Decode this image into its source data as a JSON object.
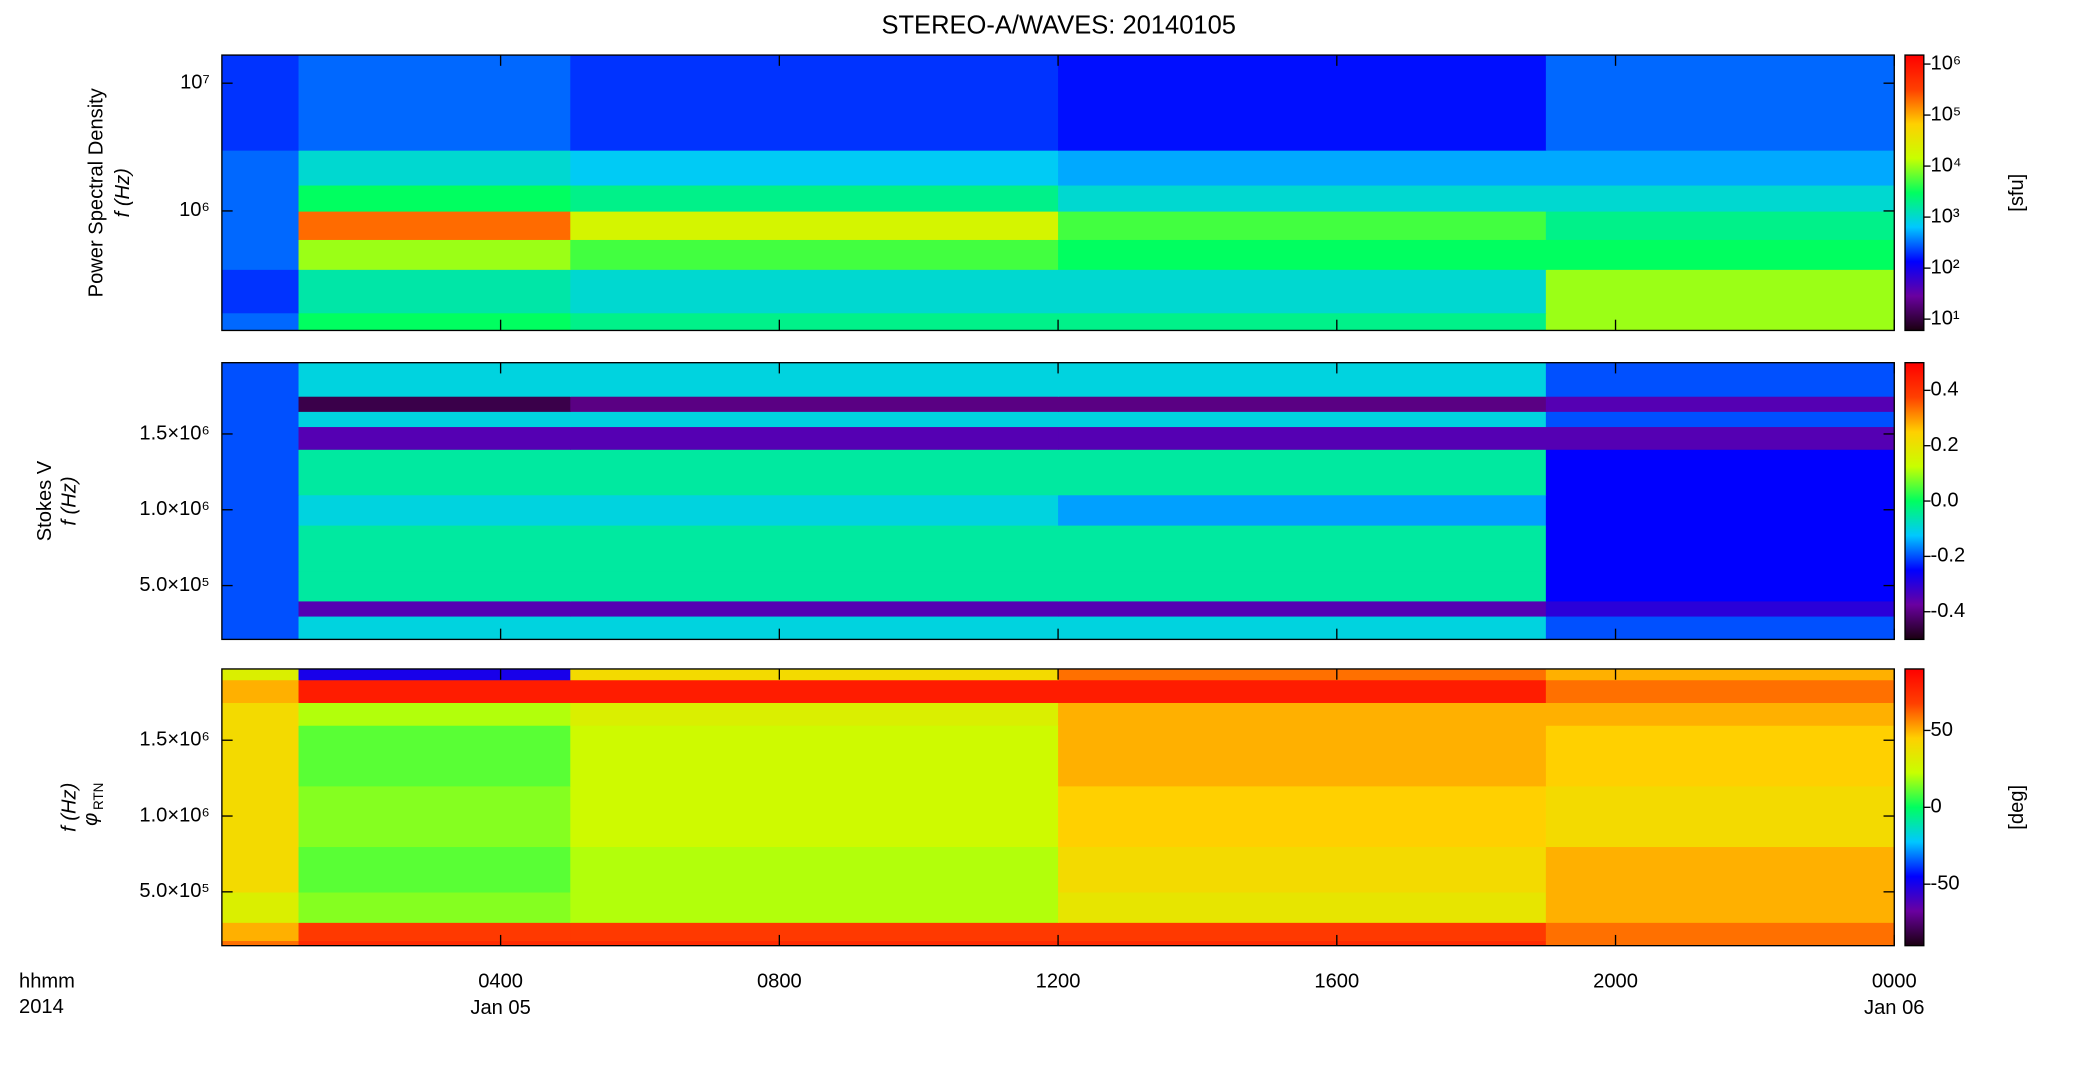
{
  "chart_data": [
    {
      "type": "heatmap",
      "title": "STEREO-A/WAVES: 20140105",
      "ylabel": "Power Spectral Density",
      "ylabel2": "f (Hz)",
      "xlim": [
        0,
        24
      ],
      "ylim": [
        116000,
        16600000
      ],
      "ylog": true,
      "yticks": [
        {
          "value": 1000000,
          "label": "10⁶"
        },
        {
          "value": 10000000,
          "label": "10⁷"
        }
      ],
      "x_edges": [
        0,
        1.1,
        5,
        12,
        19,
        24
      ],
      "y_edges": [
        116000,
        160000,
        350000,
        600000,
        1000000,
        1600000,
        3000000,
        16600000
      ],
      "z": [
        [
          300,
          3000,
          2000,
          2000,
          10000
        ],
        [
          200,
          1500,
          1000,
          1000,
          10000
        ],
        [
          300,
          10000,
          5000,
          3000,
          3000
        ],
        [
          300,
          200000,
          20000,
          5000,
          2000
        ],
        [
          300,
          3000,
          2000,
          1000,
          1000
        ],
        [
          300,
          1000,
          700,
          500,
          500
        ],
        [
          200,
          300,
          200,
          150,
          300
        ]
      ],
      "zlim": [
        6,
        1500000
      ],
      "zlog": true,
      "zlabel": "[sfu]",
      "zticks": [
        {
          "value": 10,
          "label": "10¹"
        },
        {
          "value": 100,
          "label": "10²"
        },
        {
          "value": 1000,
          "label": "10³"
        },
        {
          "value": 10000,
          "label": "10⁴"
        },
        {
          "value": 100000,
          "label": "10⁵"
        },
        {
          "value": 1000000,
          "label": "10⁶"
        }
      ],
      "colormap": [
        "#1a0010",
        "#6a00a0",
        "#0000ff",
        "#00c8ff",
        "#00ff60",
        "#c8ff00",
        "#ffd000",
        "#ff4000",
        "#ff0000"
      ]
    },
    {
      "type": "heatmap",
      "ylabel": "Stokes V",
      "ylabel2": "f (Hz)",
      "xlim": [
        0,
        24
      ],
      "ylim": [
        145000,
        1970000
      ],
      "ylog": false,
      "yticks": [
        {
          "value": 500000,
          "label": "5.0×10⁵"
        },
        {
          "value": 1000000,
          "label": "1.0×10⁶"
        },
        {
          "value": 1500000,
          "label": "1.5×10⁶"
        }
      ],
      "x_edges": [
        0,
        1.1,
        5,
        12,
        19,
        24
      ],
      "y_edges": [
        145000,
        300000,
        400000,
        600000,
        900000,
        1100000,
        1400000,
        1550000,
        1650000,
        1750000,
        1970000
      ],
      "z": [
        [
          -0.2,
          -0.1,
          -0.1,
          -0.1,
          -0.2
        ],
        [
          -0.2,
          -0.35,
          -0.35,
          -0.35,
          -0.3
        ],
        [
          -0.2,
          -0.05,
          -0.05,
          -0.05,
          -0.25
        ],
        [
          -0.2,
          -0.05,
          -0.05,
          -0.05,
          -0.25
        ],
        [
          -0.2,
          -0.1,
          -0.1,
          -0.15,
          -0.25
        ],
        [
          -0.2,
          -0.05,
          -0.05,
          -0.05,
          -0.25
        ],
        [
          -0.2,
          -0.35,
          -0.35,
          -0.35,
          -0.35
        ],
        [
          -0.2,
          -0.1,
          -0.1,
          -0.1,
          -0.2
        ],
        [
          -0.2,
          -0.45,
          -0.4,
          -0.4,
          -0.35
        ],
        [
          -0.2,
          -0.1,
          -0.1,
          -0.1,
          -0.2
        ]
      ],
      "zlim": [
        -0.5,
        0.5
      ],
      "zlog": false,
      "zticks": [
        -0.4,
        -0.2,
        {
          "value": 0,
          "label": "0.0"
        },
        0.2,
        0.4
      ],
      "colormap": [
        "#1a0010",
        "#6a00a0",
        "#0000ff",
        "#00c8ff",
        "#00ff60",
        "#c8ff00",
        "#ffd000",
        "#ff4000",
        "#ff0000"
      ]
    },
    {
      "type": "heatmap",
      "ylabel": "φ",
      "ylabel_sub": "RTN",
      "ylabel2": "f (Hz)",
      "xlim": [
        0,
        24
      ],
      "ylim": [
        145000,
        1970000
      ],
      "ylog": false,
      "yticks": [
        {
          "value": 500000,
          "label": "5.0×10⁵"
        },
        {
          "value": 1000000,
          "label": "1.0×10⁶"
        },
        {
          "value": 1500000,
          "label": "1.5×10⁶"
        }
      ],
      "xticks": [
        {
          "value": 4,
          "label": "0400"
        },
        {
          "value": 8,
          "label": "0800"
        },
        {
          "value": 12,
          "label": "1200"
        },
        {
          "value": 16,
          "label": "1600"
        },
        {
          "value": 20,
          "label": "2000"
        },
        {
          "value": 24,
          "label": "0000"
        }
      ],
      "x_date_labels": [
        {
          "value": 4,
          "label": "Jan 05"
        },
        {
          "value": 24,
          "label": "Jan 06"
        }
      ],
      "xlabel": "hhmm",
      "xlabel2": "2014",
      "x_edges": [
        0,
        1.1,
        5,
        12,
        19,
        24
      ],
      "y_edges": [
        145000,
        180000,
        300000,
        500000,
        800000,
        1200000,
        1600000,
        1750000,
        1900000,
        1970000
      ],
      "z": [
        [
          60,
          75,
          75,
          75,
          60
        ],
        [
          50,
          70,
          70,
          70,
          60
        ],
        [
          30,
          15,
          20,
          35,
          50
        ],
        [
          40,
          10,
          20,
          40,
          50
        ],
        [
          40,
          15,
          25,
          45,
          40
        ],
        [
          40,
          10,
          25,
          50,
          45
        ],
        [
          40,
          20,
          30,
          50,
          50
        ],
        [
          50,
          80,
          80,
          80,
          60
        ],
        [
          30,
          -50,
          40,
          60,
          50
        ]
      ],
      "zlim": [
        -90,
        90
      ],
      "zlog": false,
      "zlabel": "[deg]",
      "zticks": [
        -50,
        0,
        50
      ],
      "colormap": [
        "#1a0010",
        "#6a00a0",
        "#0000ff",
        "#00c8ff",
        "#00ff60",
        "#c8ff00",
        "#ffd000",
        "#ff4000",
        "#ff0000"
      ]
    }
  ]
}
